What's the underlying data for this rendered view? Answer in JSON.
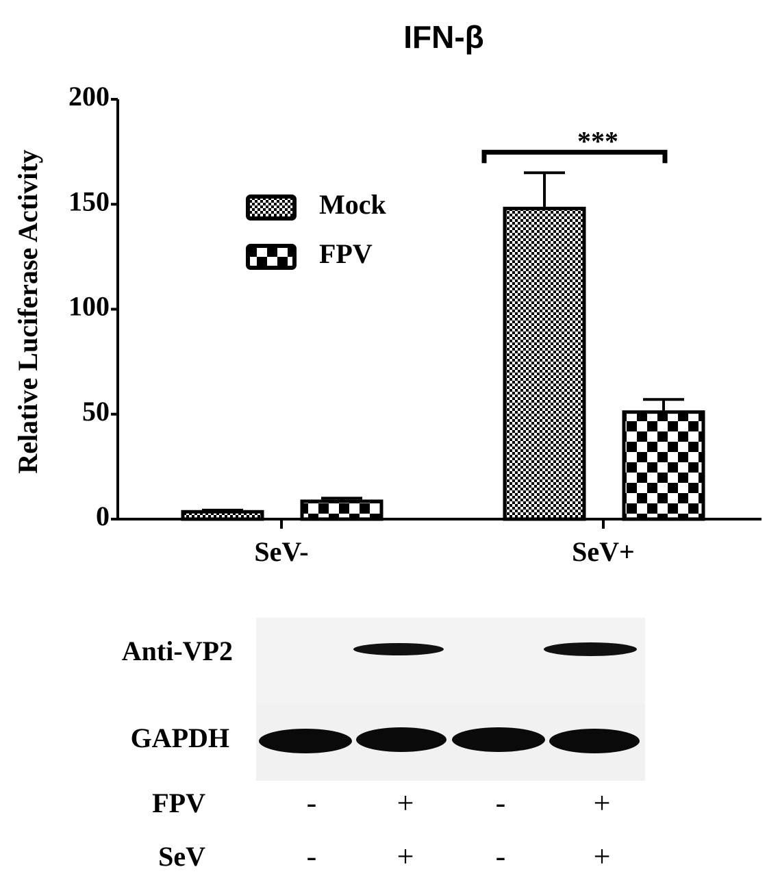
{
  "chart_data": {
    "type": "bar",
    "title": "IFN-β",
    "y_label": "Relative Luciferase Activity",
    "categories": [
      "SeV-",
      "SeV+"
    ],
    "series": [
      {
        "name": "Mock",
        "color": "#000000",
        "values": [
          3.5,
          148
        ],
        "errors": [
          0.8,
          17
        ]
      },
      {
        "name": "FPV",
        "color": "#000000",
        "values": [
          8.5,
          51
        ],
        "errors": [
          1.5,
          6
        ]
      }
    ],
    "significance": "***",
    "ylim": [
      0,
      200
    ],
    "yticks": [
      0,
      50,
      100,
      150,
      200
    ],
    "grid": false
  },
  "blot": {
    "rows": [
      "Anti-VP2",
      "GAPDH"
    ],
    "conditions": [
      {
        "label": "FPV",
        "signs": [
          "-",
          "+",
          "-",
          "+"
        ]
      },
      {
        "label": "SeV",
        "signs": [
          "-",
          "+",
          "-",
          "+"
        ]
      }
    ]
  }
}
